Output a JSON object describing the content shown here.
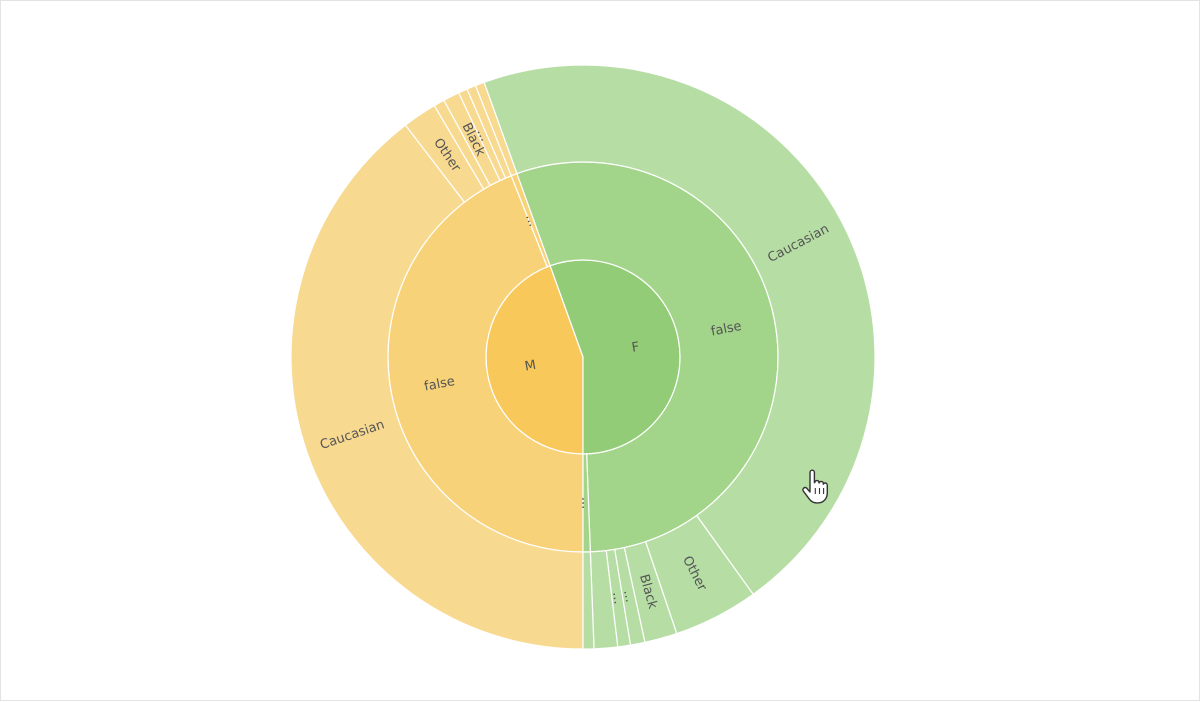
{
  "chart_data": {
    "type": "sunburst",
    "colors": {
      "M": {
        "ring1": "#f8c95a",
        "ring2": "#f8d278",
        "ring3": "#f8d990"
      },
      "F": {
        "ring1": "#93cc76",
        "ring2": "#a2d58a",
        "ring3": "#b6dea4"
      },
      "separator": "#ffffff",
      "label": "#555555"
    },
    "root": [
      {
        "name": "M",
        "value": 44.5,
        "color_key": "M",
        "children": [
          {
            "name": "false",
            "value": 44.0,
            "children": [
              {
                "name": "Caucasian",
                "value": 39.6
              },
              {
                "name": "Other",
                "value": 1.9
              },
              {
                "name": "",
                "value": 0.6
              },
              {
                "name": "Black",
                "value": 0.9
              },
              {
                "name": "...",
                "value": 0.5
              },
              {
                "name": "",
                "value": 0.5
              }
            ]
          },
          {
            "name": "...",
            "value": 0.5,
            "children": [
              {
                "name": "",
                "value": 0.5
              }
            ]
          }
        ]
      },
      {
        "name": "F",
        "value": 55.5,
        "color_key": "F",
        "children": [
          {
            "name": "false",
            "value": 54.9,
            "children": [
              {
                "name": "Caucasian",
                "value": 45.6
              },
              {
                "name": "Other",
                "value": 4.7
              },
              {
                "name": "Black",
                "value": 1.8
              },
              {
                "name": "...",
                "value": 0.8
              },
              {
                "name": "...",
                "value": 0.7
              },
              {
                "name": "",
                "value": 1.3
              }
            ]
          },
          {
            "name": "...",
            "value": 0.6,
            "children": [
              {
                "name": "",
                "value": 0.6
              }
            ]
          }
        ]
      }
    ]
  },
  "cursor": {
    "icon": "hand-pointer-icon"
  }
}
